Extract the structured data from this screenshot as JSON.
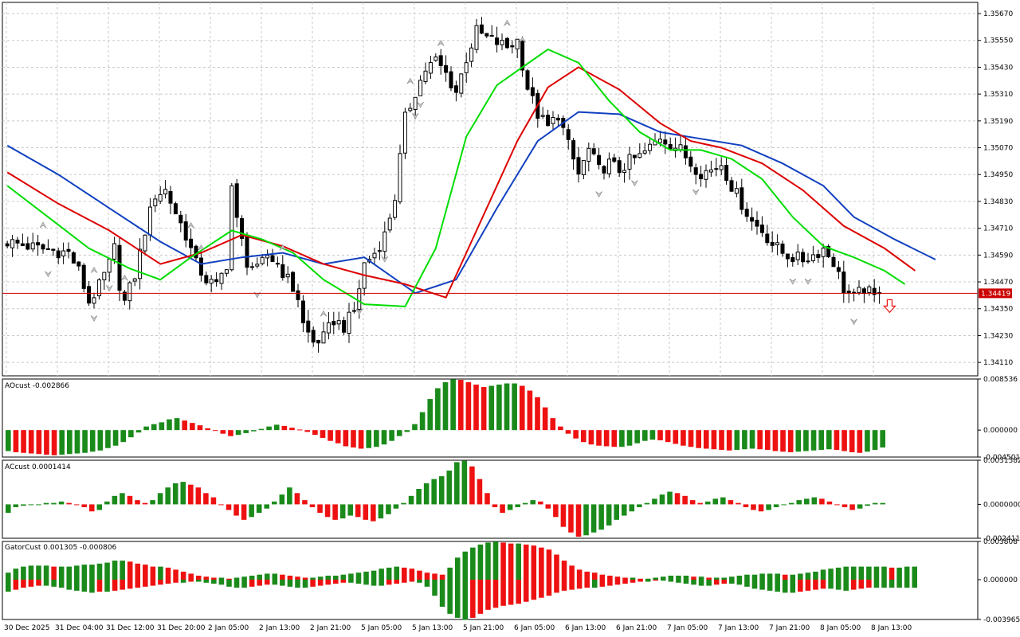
{
  "colors": {
    "bull_bar": "#1a8a1a",
    "bear_bar": "#ee1111",
    "ma_green": "#00dd00",
    "ma_red": "#dd0000",
    "ma_blue": "#1040c0",
    "current_price_line": "#cc0000",
    "grid": "#c8c8c8"
  },
  "icons": {
    "fractal_up": "up-fractal-arrow-icon",
    "fractal_down": "down-fractal-arrow-icon",
    "signal": "red-down-arrow-icon"
  },
  "chart_data": [
    {
      "type": "candlestick",
      "pane": "main",
      "ylim": [
        1.3405,
        1.3572
      ],
      "y_ticks": [
        "1.35670",
        "1.35550",
        "1.35430",
        "1.35310",
        "1.35190",
        "1.35070",
        "1.34950",
        "1.34830",
        "1.34710",
        "1.34590",
        "1.34470",
        "1.34350",
        "1.34230",
        "1.34110"
      ],
      "current_price": 1.34419,
      "current_price_label": "1.34419",
      "x_ticks": [
        "30 Dec 2025",
        "31 Dec 04:00",
        "31 Dec 12:00",
        "31 Dec 20:00",
        "2 Jan 05:00",
        "2 Jan 13:00",
        "2 Jan 21:00",
        "5 Jan 05:00",
        "5 Jan 13:00",
        "5 Jan 21:00",
        "6 Jan 05:00",
        "6 Jan 13:00",
        "6 Jan 21:00",
        "7 Jan 05:00",
        "7 Jan 13:00",
        "7 Jan 21:00",
        "8 Jan 05:00",
        "8 Jan 13:00"
      ],
      "close_path": [
        [
          0,
          1.3465
        ],
        [
          6,
          1.3462
        ],
        [
          12,
          1.346
        ],
        [
          14,
          1.3452
        ],
        [
          16,
          1.3438
        ],
        [
          18,
          1.3445
        ],
        [
          20,
          1.3455
        ],
        [
          21,
          1.3462
        ],
        [
          22,
          1.3446
        ],
        [
          23,
          1.3438
        ],
        [
          25,
          1.345
        ],
        [
          27,
          1.347
        ],
        [
          29,
          1.3486
        ],
        [
          31,
          1.3488
        ],
        [
          33,
          1.3478
        ],
        [
          35,
          1.3468
        ],
        [
          37,
          1.3455
        ],
        [
          39,
          1.3448
        ],
        [
          41,
          1.3445
        ],
        [
          43,
          1.3455
        ],
        [
          44,
          1.349
        ],
        [
          45,
          1.3474
        ],
        [
          47,
          1.3456
        ],
        [
          49,
          1.3452
        ],
        [
          51,
          1.3459
        ],
        [
          53,
          1.3455
        ],
        [
          55,
          1.3448
        ],
        [
          57,
          1.344
        ],
        [
          58,
          1.3428
        ],
        [
          60,
          1.342
        ],
        [
          62,
          1.3422
        ],
        [
          64,
          1.343
        ],
        [
          66,
          1.3427
        ],
        [
          68,
          1.3434
        ],
        [
          70,
          1.3455
        ],
        [
          72,
          1.346
        ],
        [
          74,
          1.3468
        ],
        [
          76,
          1.3485
        ],
        [
          78,
          1.352
        ],
        [
          80,
          1.3532
        ],
        [
          82,
          1.3542
        ],
        [
          84,
          1.3546
        ],
        [
          86,
          1.354
        ],
        [
          88,
          1.3532
        ],
        [
          90,
          1.3547
        ],
        [
          92,
          1.3559
        ],
        [
          94,
          1.3556
        ],
        [
          96,
          1.3554
        ],
        [
          98,
          1.3552
        ],
        [
          100,
          1.3555
        ],
        [
          102,
          1.3534
        ],
        [
          104,
          1.3522
        ],
        [
          106,
          1.3516
        ],
        [
          108,
          1.3522
        ],
        [
          110,
          1.3508
        ],
        [
          112,
          1.3495
        ],
        [
          114,
          1.3506
        ],
        [
          116,
          1.3497
        ],
        [
          118,
          1.35
        ],
        [
          120,
          1.3497
        ],
        [
          122,
          1.3501
        ],
        [
          124,
          1.3503
        ],
        [
          126,
          1.3507
        ],
        [
          128,
          1.3512
        ],
        [
          130,
          1.3509
        ],
        [
          132,
          1.3506
        ],
        [
          134,
          1.35
        ],
        [
          136,
          1.3496
        ],
        [
          138,
          1.3497
        ],
        [
          140,
          1.35
        ],
        [
          142,
          1.349
        ],
        [
          144,
          1.3482
        ],
        [
          146,
          1.3474
        ],
        [
          148,
          1.347
        ],
        [
          150,
          1.3464
        ],
        [
          152,
          1.346
        ],
        [
          154,
          1.3458
        ],
        [
          156,
          1.3457
        ],
        [
          158,
          1.3459
        ],
        [
          160,
          1.3462
        ],
        [
          162,
          1.3456
        ],
        [
          164,
          1.3444
        ],
        [
          166,
          1.344
        ],
        [
          168,
          1.3444
        ],
        [
          170,
          1.344
        ],
        [
          171,
          1.3444
        ]
      ],
      "overlays": [
        {
          "name": "",
          "color": "ma_blue",
          "values": [
            [
              0,
              1.3508
            ],
            [
              10,
              1.3495
            ],
            [
              20,
              1.348
            ],
            [
              30,
              1.3465
            ],
            [
              38,
              1.3455
            ],
            [
              46,
              1.3458
            ],
            [
              54,
              1.346
            ],
            [
              62,
              1.3455
            ],
            [
              70,
              1.3458
            ],
            [
              80,
              1.3442
            ],
            [
              88,
              1.3448
            ],
            [
              96,
              1.348
            ],
            [
              104,
              1.351
            ],
            [
              112,
              1.3523
            ],
            [
              120,
              1.3522
            ],
            [
              128,
              1.3514
            ],
            [
              136,
              1.3511
            ],
            [
              144,
              1.3508
            ],
            [
              152,
              1.35
            ],
            [
              160,
              1.349
            ],
            [
              166,
              1.3476
            ],
            [
              174,
              1.3466
            ],
            [
              182,
              1.3457
            ]
          ]
        },
        {
          "name": "",
          "color": "ma_red",
          "values": [
            [
              0,
              1.3496
            ],
            [
              10,
              1.3482
            ],
            [
              20,
              1.347
            ],
            [
              30,
              1.3455
            ],
            [
              38,
              1.346
            ],
            [
              46,
              1.3468
            ],
            [
              54,
              1.3463
            ],
            [
              62,
              1.3455
            ],
            [
              70,
              1.345
            ],
            [
              78,
              1.3446
            ],
            [
              86,
              1.344
            ],
            [
              92,
              1.347
            ],
            [
              100,
              1.351
            ],
            [
              106,
              1.3534
            ],
            [
              112,
              1.3543
            ],
            [
              120,
              1.3533
            ],
            [
              128,
              1.3518
            ],
            [
              134,
              1.351
            ],
            [
              140,
              1.3507
            ],
            [
              148,
              1.35
            ],
            [
              156,
              1.3488
            ],
            [
              164,
              1.3472
            ],
            [
              172,
              1.3462
            ],
            [
              178,
              1.3452
            ]
          ]
        },
        {
          "name": "",
          "color": "ma_green",
          "values": [
            [
              0,
              1.349
            ],
            [
              8,
              1.3476
            ],
            [
              16,
              1.3462
            ],
            [
              24,
              1.3453
            ],
            [
              30,
              1.3448
            ],
            [
              36,
              1.3458
            ],
            [
              44,
              1.347
            ],
            [
              50,
              1.3466
            ],
            [
              56,
              1.346
            ],
            [
              62,
              1.3448
            ],
            [
              70,
              1.3437
            ],
            [
              78,
              1.3436
            ],
            [
              84,
              1.3462
            ],
            [
              90,
              1.3512
            ],
            [
              96,
              1.3535
            ],
            [
              106,
              1.3551
            ],
            [
              112,
              1.3545
            ],
            [
              118,
              1.3528
            ],
            [
              124,
              1.3514
            ],
            [
              130,
              1.3506
            ],
            [
              136,
              1.3506
            ],
            [
              142,
              1.3502
            ],
            [
              148,
              1.3493
            ],
            [
              154,
              1.3476
            ],
            [
              160,
              1.3463
            ],
            [
              166,
              1.3458
            ],
            [
              172,
              1.3452
            ],
            [
              176,
              1.3446
            ]
          ]
        }
      ]
    },
    {
      "type": "histogram",
      "pane": "AOcust",
      "label": "AOcust -0.002866",
      "ylim": [
        -0.004501,
        0.008536
      ],
      "y_ticks": [
        "0.008536",
        "0.000000",
        "-0.004501"
      ],
      "values": [
        -0.0035,
        -0.0037,
        -0.0038,
        -0.0039,
        -0.004,
        -0.0041,
        -0.0042,
        -0.0041,
        -0.004,
        -0.0039,
        -0.0038,
        -0.0036,
        -0.0034,
        -0.003,
        -0.0026,
        -0.002,
        -0.0012,
        -0.0004,
        0.0006,
        0.001,
        0.0013,
        0.0018,
        0.002,
        0.0016,
        0.0012,
        0.0008,
        0.0003,
        -0.0001,
        -0.0006,
        -0.001,
        -0.0008,
        -0.0005,
        -0.0002,
        0.0002,
        0.0006,
        0.0009,
        0.0007,
        0.0004,
        0.0001,
        -0.0003,
        -0.0008,
        -0.0013,
        -0.0018,
        -0.0022,
        -0.0027,
        -0.0029,
        -0.0031,
        -0.003,
        -0.0028,
        -0.0024,
        -0.0018,
        -0.001,
        -0.0003,
        0.001,
        0.003,
        0.0052,
        0.007,
        0.008,
        0.0085,
        0.0084,
        0.008,
        0.0076,
        0.0072,
        0.0074,
        0.0076,
        0.0078,
        0.0078,
        0.0074,
        0.0066,
        0.0055,
        0.0038,
        0.002,
        0.0006,
        -0.0006,
        -0.0014,
        -0.002,
        -0.0024,
        -0.0026,
        -0.0027,
        -0.0028,
        -0.0028,
        -0.0026,
        -0.0022,
        -0.0018,
        -0.0016,
        -0.0017,
        -0.002,
        -0.0023,
        -0.0026,
        -0.0028,
        -0.003,
        -0.0031,
        -0.0032,
        -0.0033,
        -0.0034,
        -0.0033,
        -0.0032,
        -0.0031,
        -0.0032,
        -0.0033,
        -0.0035,
        -0.0036,
        -0.0037,
        -0.0036,
        -0.0035,
        -0.0034,
        -0.0033,
        -0.0032,
        -0.0033,
        -0.0035,
        -0.0037,
        -0.0038,
        -0.0036,
        -0.0033,
        -0.0029
      ]
    },
    {
      "type": "histogram",
      "pane": "ACcust",
      "label": "ACcust 0.0001414",
      "ylim": [
        -0.0024114,
        0.0031382
      ],
      "y_ticks": [
        "0.0031382",
        "0.0000000",
        "-0.0024114"
      ],
      "values": [
        -0.0006,
        -0.0002,
        -0.0001,
        0.0,
        0.0,
        0.0001,
        0.0001,
        0.0002,
        0.0001,
        0.0,
        -0.0002,
        -0.0005,
        -0.0004,
        0.0002,
        0.0006,
        0.0008,
        0.0006,
        0.0003,
        0.0001,
        0.0003,
        0.0008,
        0.0012,
        0.0015,
        0.0016,
        0.0014,
        0.0012,
        0.0008,
        0.0005,
        0.0,
        -0.0004,
        -0.0008,
        -0.0011,
        -0.0009,
        -0.0006,
        -0.0003,
        0.0002,
        0.0007,
        0.0012,
        0.0008,
        0.0003,
        -0.0002,
        -0.0006,
        -0.0009,
        -0.0011,
        -0.001,
        -0.0008,
        -0.0009,
        -0.0011,
        -0.0012,
        -0.001,
        -0.0007,
        -0.0003,
        0.0001,
        0.0006,
        0.0011,
        0.0015,
        0.0018,
        0.002,
        0.0024,
        0.003,
        0.0031,
        0.0027,
        0.0018,
        0.0008,
        -0.0002,
        -0.0006,
        -0.0004,
        -0.0002,
        0.0001,
        0.0003,
        0.0002,
        -0.0003,
        -0.0009,
        -0.0016,
        -0.002,
        -0.0023,
        -0.0022,
        -0.002,
        -0.0018,
        -0.0015,
        -0.0011,
        -0.0008,
        -0.0005,
        -0.0002,
        0.0001,
        0.0004,
        0.0007,
        0.0009,
        0.0008,
        0.0006,
        0.0003,
        0.0001,
        0.0002,
        0.0004,
        0.0005,
        0.0003,
        0.0001,
        -0.0002,
        -0.0004,
        -0.0005,
        -0.0004,
        -0.0002,
        0.0,
        0.0001,
        0.0003,
        0.0004,
        0.0005,
        0.0004,
        0.0002,
        0.0,
        -0.0002,
        -0.0004,
        -0.0003,
        -0.0001,
        0.0001,
        0.0001
      ]
    },
    {
      "type": "gator",
      "pane": "GatorCust",
      "label": "GatorCust 0.001305 -0.000806",
      "ylim": [
        -0.003965,
        0.003808
      ],
      "y_ticks": [
        "0.003808",
        "0.000000",
        "-0.003965"
      ],
      "upper": [
        0.0007,
        0.0011,
        0.0013,
        0.0014,
        0.0014,
        0.0014,
        0.0013,
        0.0013,
        0.0013,
        0.0014,
        0.0015,
        0.0015,
        0.0016,
        0.0017,
        0.0019,
        0.0019,
        0.0018,
        0.0016,
        0.0015,
        0.0013,
        0.0013,
        0.0012,
        0.001,
        0.0008,
        0.0006,
        0.0004,
        0.0003,
        0.0002,
        0.0002,
        0.0001,
        0.0002,
        0.0003,
        0.0004,
        0.0005,
        0.0006,
        0.0006,
        0.0005,
        0.0004,
        0.0003,
        0.0002,
        0.0002,
        0.0003,
        0.0004,
        0.0004,
        0.0005,
        0.0006,
        0.0007,
        0.0008,
        0.0009,
        0.0011,
        0.0012,
        0.0013,
        0.0012,
        0.0011,
        0.0009,
        0.0007,
        0.0006,
        0.0005,
        0.0012,
        0.0022,
        0.0028,
        0.0032,
        0.0035,
        0.0037,
        0.0038,
        0.0037,
        0.0036,
        0.0036,
        0.0035,
        0.0034,
        0.0032,
        0.003,
        0.0025,
        0.0019,
        0.0014,
        0.001,
        0.0008,
        0.0007,
        0.0005,
        0.0004,
        0.0003,
        0.0002,
        0.0002,
        0.0001,
        0.0001,
        0.0002,
        0.0003,
        0.0004,
        0.0004,
        0.0004,
        0.0003,
        0.0003,
        0.0002,
        0.0002,
        0.0002,
        0.0003,
        0.0004,
        0.0005,
        0.0005,
        0.0006,
        0.0006,
        0.0006,
        0.0005,
        0.0005,
        0.0006,
        0.0007,
        0.0008,
        0.001,
        0.0011,
        0.0012,
        0.0013,
        0.0013,
        0.0013,
        0.0013,
        0.0013,
        0.0013,
        0.0012,
        0.0012,
        0.0013,
        0.0013
      ],
      "lower": [
        -0.0012,
        -0.001,
        -0.0008,
        -0.0007,
        -0.0006,
        -0.0006,
        -0.0007,
        -0.0008,
        -0.001,
        -0.0011,
        -0.0012,
        -0.0013,
        -0.0012,
        -0.0012,
        -0.0011,
        -0.001,
        -0.0009,
        -0.0008,
        -0.0007,
        -0.0006,
        -0.0005,
        -0.0004,
        -0.0003,
        -0.0003,
        -0.0002,
        -0.0002,
        -0.0003,
        -0.0004,
        -0.0005,
        -0.0007,
        -0.0008,
        -0.0008,
        -0.0007,
        -0.0006,
        -0.0005,
        -0.0005,
        -0.0006,
        -0.0007,
        -0.0008,
        -0.0008,
        -0.0007,
        -0.0006,
        -0.0005,
        -0.0004,
        -0.0003,
        -0.0003,
        -0.0004,
        -0.0005,
        -0.0006,
        -0.0006,
        -0.0005,
        -0.0004,
        -0.0003,
        -0.0002,
        -0.0003,
        -0.0007,
        -0.0016,
        -0.0027,
        -0.0034,
        -0.0038,
        -0.004,
        -0.0038,
        -0.0034,
        -0.003,
        -0.0028,
        -0.0026,
        -0.0025,
        -0.0024,
        -0.0022,
        -0.002,
        -0.0018,
        -0.0016,
        -0.0013,
        -0.0011,
        -0.001,
        -0.0009,
        -0.0008,
        -0.0008,
        -0.0007,
        -0.0006,
        -0.0005,
        -0.0004,
        -0.0003,
        -0.0002,
        -0.0002,
        -0.0001,
        -0.0001,
        -0.0002,
        -0.0003,
        -0.0004,
        -0.0005,
        -0.0006,
        -0.0006,
        -0.0005,
        -0.0004,
        -0.0004,
        -0.0005,
        -0.0007,
        -0.0009,
        -0.001,
        -0.0011,
        -0.0012,
        -0.0013,
        -0.0013,
        -0.0012,
        -0.0011,
        -0.001,
        -0.0009,
        -0.0009,
        -0.001,
        -0.0011,
        -0.001,
        -0.0009,
        -0.0008,
        -0.0008,
        -0.0008,
        -0.0008,
        -0.0008,
        -0.0008,
        -0.0008
      ]
    }
  ]
}
